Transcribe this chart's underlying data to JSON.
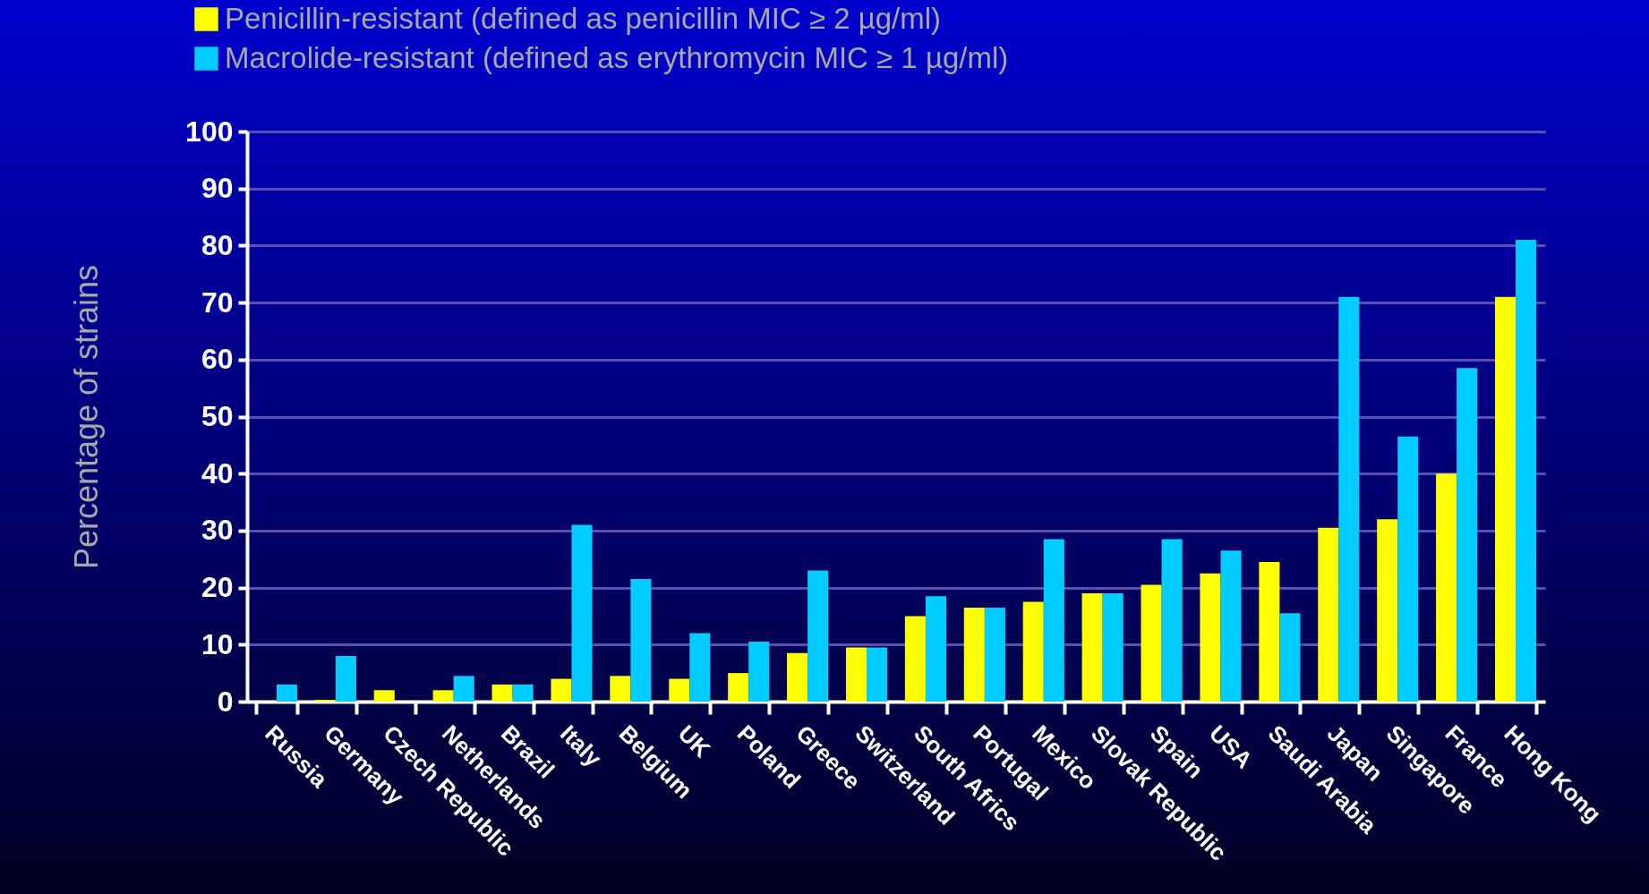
{
  "chart_data": {
    "type": "bar",
    "ylabel": "Percentage of strains",
    "categories": [
      "Russia",
      "Germany",
      "Czech Republic",
      "Netherlands",
      "Brazil",
      "Italy",
      "Belgium",
      "UK",
      "Poland",
      "Greece",
      "Switzerland",
      "South Africs",
      "Portugal",
      "Mexico",
      "Slovak Republic",
      "Spain",
      "USA",
      "Saudi Arabia",
      "Japan",
      "Singapore",
      "France",
      "Hong Kong"
    ],
    "series": [
      {
        "name": "Penicillin-resistant (defined as penicillin MIC ≥ 2 µg/ml)",
        "color": "#ffff00",
        "values": [
          0,
          0.3,
          2,
          2,
          3,
          4,
          4.5,
          4,
          5,
          8.5,
          9.5,
          15,
          16.5,
          17.5,
          19,
          20.5,
          22.5,
          24.5,
          30.5,
          32,
          40,
          71
        ]
      },
      {
        "name": "Macrolide-resistant (defined as erythromycin MIC ≥ 1 µg/ml)",
        "color": "#00ccff",
        "values": [
          3,
          8,
          0,
          4.5,
          3,
          31,
          21.5,
          12,
          10.5,
          23,
          9.5,
          18.5,
          16.5,
          28.5,
          19,
          28.5,
          26.5,
          15.5,
          71,
          46.5,
          58.5,
          81
        ]
      }
    ],
    "ylim": [
      0,
      100
    ],
    "yticks": [
      0,
      10,
      20,
      30,
      40,
      50,
      60,
      70,
      80,
      90,
      100
    ],
    "grid": "y",
    "legend": "top left"
  }
}
